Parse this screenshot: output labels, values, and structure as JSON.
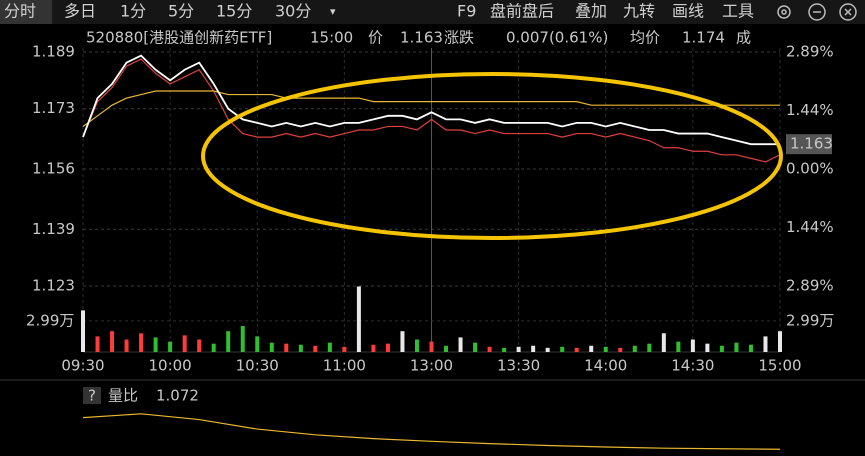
{
  "toolbar": {
    "tabs": [
      "分时",
      "多日",
      "1分",
      "5分",
      "15分",
      "30分"
    ],
    "more": "▾",
    "tools": [
      "F9",
      "盘前盘后",
      "叠加",
      "九转",
      "画线",
      "工具"
    ]
  },
  "header": {
    "name": "520880[港股通创新药ETF]",
    "time": "15:00",
    "price_label": "价",
    "change_label": "涨跌",
    "change": "0.007(0.61%)",
    "avg_label": "均价",
    "avg": 1.174,
    "more": "成"
  },
  "chart_data": {
    "type": "line",
    "x": [
      0,
      5,
      10,
      15,
      20,
      25,
      30,
      35,
      40,
      45,
      50,
      55,
      60,
      65,
      70,
      75,
      80,
      85,
      90,
      95,
      100,
      105,
      110,
      115,
      120,
      125,
      130,
      135,
      140,
      145,
      150,
      155,
      160,
      165,
      170,
      175,
      180,
      185,
      190,
      195,
      200,
      205,
      210,
      215,
      220,
      225,
      230,
      235,
      240
    ],
    "xlim": [
      0,
      240
    ],
    "xticks": [
      {
        "value": 0,
        "label": "09:30"
      },
      {
        "value": 30,
        "label": "10:00"
      },
      {
        "value": 60,
        "label": "10:30"
      },
      {
        "value": 90,
        "label": "11:00"
      },
      {
        "value": 120,
        "label": "13:00"
      },
      {
        "value": 150,
        "label": "13:30"
      },
      {
        "value": 180,
        "label": "14:00"
      },
      {
        "value": 210,
        "label": "14:30"
      },
      {
        "value": 240,
        "label": "15:00"
      }
    ],
    "ylim": [
      1.123,
      1.189
    ],
    "yticks": [
      1.189,
      1.173,
      1.156,
      1.139,
      1.123
    ],
    "y2lim": [
      -2.89,
      2.89
    ],
    "y2ticks": [
      {
        "value": 2.89,
        "label": "2.89%"
      },
      {
        "value": 1.44,
        "label": "1.44%"
      },
      {
        "value": 0,
        "label": "0.00%"
      },
      {
        "value": -1.44,
        "label": "1.44%"
      },
      {
        "value": -2.89,
        "label": "2.89%"
      }
    ],
    "grid": true,
    "up_color": "#ff3b3b",
    "down_color": "#2fc02f",
    "flat_color": "#e8e8e8",
    "series": [
      {
        "color": "#ffffff",
        "values": [
          1.165,
          1.176,
          1.18,
          1.186,
          1.188,
          1.184,
          1.181,
          1.184,
          1.186,
          1.18,
          1.173,
          1.17,
          1.169,
          1.168,
          1.169,
          1.168,
          1.169,
          1.168,
          1.169,
          1.169,
          1.17,
          1.171,
          1.171,
          1.17,
          1.172,
          1.17,
          1.17,
          1.169,
          1.17,
          1.169,
          1.169,
          1.169,
          1.169,
          1.168,
          1.169,
          1.169,
          1.168,
          1.169,
          1.168,
          1.167,
          1.167,
          1.166,
          1.166,
          1.166,
          1.165,
          1.164,
          1.163,
          1.163,
          1.163
        ]
      },
      {
        "color": "#e8b830",
        "values": [
          1.168,
          1.171,
          1.174,
          1.176,
          1.177,
          1.178,
          1.178,
          1.178,
          1.178,
          1.178,
          1.177,
          1.177,
          1.177,
          1.177,
          1.176,
          1.176,
          1.176,
          1.176,
          1.176,
          1.176,
          1.175,
          1.175,
          1.175,
          1.175,
          1.175,
          1.175,
          1.175,
          1.175,
          1.175,
          1.175,
          1.175,
          1.175,
          1.175,
          1.175,
          1.175,
          1.174,
          1.174,
          1.174,
          1.174,
          1.174,
          1.174,
          1.174,
          1.174,
          1.174,
          1.174,
          1.174,
          1.174,
          1.174,
          1.174
        ]
      },
      {
        "color": "#e04040",
        "values": [
          1.165,
          1.175,
          1.179,
          1.185,
          1.187,
          1.183,
          1.18,
          1.182,
          1.184,
          1.178,
          1.17,
          1.166,
          1.165,
          1.165,
          1.166,
          1.165,
          1.166,
          1.165,
          1.166,
          1.167,
          1.167,
          1.168,
          1.168,
          1.167,
          1.17,
          1.167,
          1.167,
          1.166,
          1.167,
          1.166,
          1.166,
          1.166,
          1.166,
          1.165,
          1.166,
          1.166,
          1.165,
          1.166,
          1.165,
          1.164,
          1.162,
          1.162,
          1.161,
          1.161,
          1.16,
          1.16,
          1.159,
          1.158,
          1.16
        ]
      }
    ],
    "volume": {
      "values": [
        40000,
        15000,
        20000,
        12000,
        18000,
        14000,
        10000,
        16000,
        12000,
        8000,
        20000,
        25000,
        15000,
        9000,
        8000,
        7000,
        6000,
        9000,
        5000,
        63000,
        7000,
        8000,
        20000,
        12000,
        10000,
        6000,
        14000,
        9000,
        5000,
        4000,
        5000,
        6000,
        4000,
        5000,
        4000,
        6000,
        5000,
        4000,
        6000,
        8000,
        18000,
        10000,
        12000,
        8000,
        6000,
        9000,
        7000,
        15000,
        20000
      ],
      "ylim": [
        0,
        50000
      ],
      "yticks": [
        {
          "value": 29900,
          "label": "2.99万"
        }
      ]
    },
    "volume_ratio": {
      "label": "量比",
      "value": 1.072,
      "x": [
        0,
        20,
        40,
        60,
        80,
        100,
        120,
        140,
        160,
        180,
        200,
        220,
        240
      ],
      "values": [
        1.9,
        2.0,
        1.85,
        1.6,
        1.45,
        1.35,
        1.28,
        1.22,
        1.17,
        1.13,
        1.1,
        1.085,
        1.072
      ],
      "ylim": [
        1.0,
        2.1
      ],
      "color": "#e8b830"
    }
  }
}
